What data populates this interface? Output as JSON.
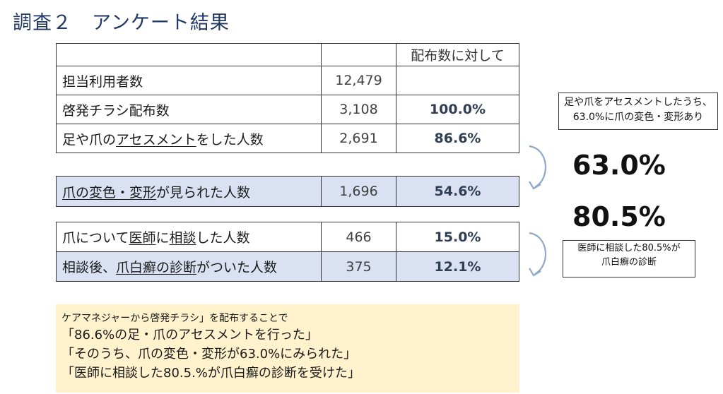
{
  "title": "調査２　アンケート結果",
  "table": {
    "header": [
      "",
      "",
      "配布数に対して"
    ],
    "rows": [
      {
        "label": "担当利用者数",
        "count": "12,479",
        "pct": ""
      },
      {
        "label": "啓発チラシ配布数",
        "count": "3,108",
        "pct": "100.0%"
      },
      {
        "label_parts": [
          "足や爪の",
          "アセスメント",
          "をした人数"
        ],
        "count": "2,691",
        "pct": "86.6%"
      }
    ],
    "row_hl1": {
      "label_parts": [
        "爪の変色・変形",
        "が見られた人数"
      ],
      "count": "1,696",
      "pct": "54.6%"
    },
    "row_consult": {
      "label_parts": [
        "爪について",
        "医師",
        "に",
        "相談",
        "した人数"
      ],
      "count": "466",
      "pct": "15.0%"
    },
    "row_hl2": {
      "label_parts": [
        "相談後、",
        "爪白癬の診断",
        "がついた人数"
      ],
      "count": "375",
      "pct": "12.1%"
    }
  },
  "notes": {
    "note1_lines": [
      "足や爪をアセスメントしたうち、",
      "63.0%に爪の変色・変形あり"
    ],
    "note2_lines": [
      "医師に相談した80.5%が",
      "爪白癬の診断"
    ]
  },
  "big_values": [
    "63.0%",
    "80.5%"
  ],
  "summary": {
    "lead": "ケアマネジャーから啓発チラシ」を配布することで",
    "lines": [
      "「86.6%の足・爪のアセスメントを行った」",
      "「そのうち、爪の変色・変形が63.0%にみられた」",
      "「医師に相談した80.5.%が爪白癬の診断を受けた」"
    ]
  },
  "colors": {
    "title": "#1f3864",
    "highlight_row": "#d9e1f2",
    "summary_bg": "#fff2cc",
    "arrow": "#8ea9c8"
  }
}
